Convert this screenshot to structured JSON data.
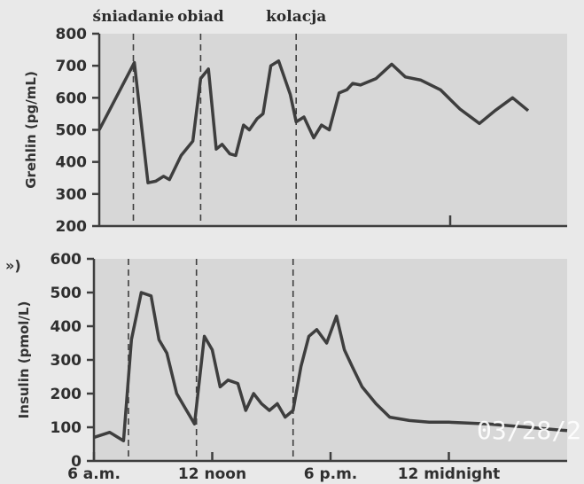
{
  "colors": {
    "line": "#3e3e3e",
    "plot_bg": "#d7d7d7",
    "page_bg": "#e9e9e9",
    "stamp": "#ffffff"
  },
  "panel_marker": "»)",
  "date_stamp": "03/28/2",
  "chart_data": [
    {
      "type": "line",
      "ylabel": "Grehlin (pg/mL)",
      "ylim": [
        200,
        800
      ],
      "yticks": [
        200,
        300,
        400,
        500,
        600,
        700,
        800
      ],
      "xlim": [
        6,
        30
      ],
      "meals": [
        {
          "label": "śniadanie",
          "x": 7.75
        },
        {
          "label": "obiad",
          "x": 11.2
        },
        {
          "label": "kolacja",
          "x": 16.1
        }
      ],
      "series": [
        {
          "x": [
            6,
            7.8,
            8.5,
            8.9,
            9.3,
            9.6,
            10.2,
            10.8,
            11.2,
            11.6,
            12.0,
            12.3,
            12.7,
            13.0,
            13.4,
            13.7,
            14.1,
            14.4,
            14.8,
            15.2,
            15.8,
            16.1,
            16.5,
            17.0,
            17.4,
            17.8,
            18.3,
            18.7,
            19.0,
            19.4,
            20.2,
            21.0,
            21.7,
            22.5,
            23.5,
            24.5,
            25.5,
            26.3,
            27.2,
            28.0
          ],
          "values": [
            500,
            710,
            335,
            340,
            355,
            345,
            420,
            465,
            660,
            690,
            440,
            455,
            425,
            420,
            515,
            500,
            535,
            550,
            700,
            715,
            610,
            525,
            540,
            475,
            515,
            500,
            615,
            625,
            645,
            640,
            660,
            705,
            665,
            655,
            625,
            565,
            520,
            560,
            600,
            560
          ]
        }
      ]
    },
    {
      "type": "line",
      "ylabel": "Insulin (pmol/L)",
      "ylim": [
        0,
        600
      ],
      "yticks": [
        0,
        100,
        200,
        300,
        400,
        500,
        600
      ],
      "xlim": [
        6,
        30
      ],
      "xticks": [
        {
          "label": "6 a.m.",
          "value": 6
        },
        {
          "label": "12 noon",
          "value": 12
        },
        {
          "label": "6 p.m.",
          "value": 18
        },
        {
          "label": "12 midnight",
          "value": 24
        }
      ],
      "meals": [
        {
          "x": 7.75
        },
        {
          "x": 11.2
        },
        {
          "x": 16.1
        }
      ],
      "series": [
        {
          "x": [
            6,
            6.8,
            7.5,
            7.9,
            8.4,
            8.9,
            9.3,
            9.7,
            10.2,
            10.6,
            11.1,
            11.6,
            12.0,
            12.4,
            12.8,
            13.3,
            13.7,
            14.1,
            14.5,
            14.9,
            15.3,
            15.7,
            16.1,
            16.5,
            16.9,
            17.3,
            17.8,
            18.3,
            18.7,
            19.1,
            19.6,
            20.3,
            21.0,
            22.0,
            23.0,
            24.0,
            26.0,
            28.0,
            30.0
          ],
          "values": [
            70,
            85,
            60,
            360,
            500,
            490,
            360,
            320,
            200,
            160,
            110,
            370,
            330,
            220,
            240,
            230,
            150,
            200,
            170,
            150,
            170,
            130,
            150,
            280,
            370,
            390,
            350,
            430,
            330,
            280,
            220,
            170,
            130,
            120,
            115,
            115,
            110,
            100,
            90
          ]
        }
      ]
    }
  ]
}
